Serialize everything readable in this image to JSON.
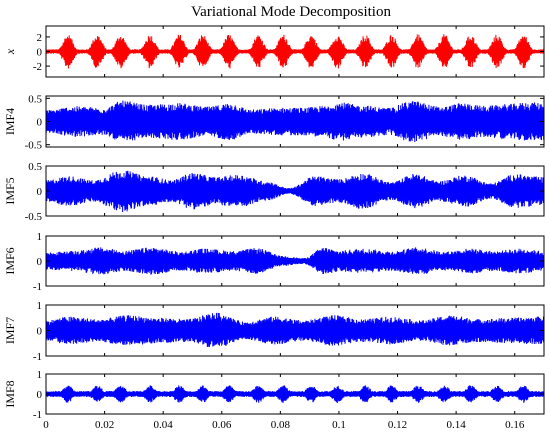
{
  "chart_data": {
    "title": "Variational Mode Decomposition",
    "type": "line",
    "xlim": [
      0,
      0.17
    ],
    "x_ticks": [
      "0",
      "0.02",
      "0.04",
      "0.06",
      "0.08",
      "0.1",
      "0.12",
      "0.14",
      "0.16"
    ],
    "x_tick_values": [
      0,
      0.02,
      0.04,
      0.06,
      0.08,
      0.1,
      0.12,
      0.14,
      0.16
    ],
    "panels": [
      {
        "ylabel": "x",
        "color": "#ff0000",
        "ylim": [
          -3.5,
          3.5
        ],
        "y_ticks": [
          "2",
          "0",
          "-2"
        ],
        "y_tick_values": [
          2,
          0,
          -2
        ],
        "envelope": {
          "kind": "bursts",
          "burst_centers": [
            0.0075,
            0.0175,
            0.0255,
            0.0355,
            0.0455,
            0.0535,
            0.0625,
            0.0725,
            0.081,
            0.0905,
            0.0995,
            0.109,
            0.118,
            0.127,
            0.136,
            0.145,
            0.154,
            0.163
          ],
          "burst_peak": 2.4,
          "baseline": 0.3
        }
      },
      {
        "ylabel": "IMF4",
        "color": "#0000ff",
        "ylim": [
          -0.55,
          0.55
        ],
        "y_ticks": [
          "0.5",
          "0",
          "-0.5"
        ],
        "y_tick_values": [
          0.5,
          0,
          -0.5
        ],
        "envelope": {
          "kind": "knots",
          "t": [
            0,
            0.01,
            0.02,
            0.026,
            0.035,
            0.045,
            0.055,
            0.063,
            0.07,
            0.08,
            0.088,
            0.095,
            0.1,
            0.108,
            0.117,
            0.125,
            0.135,
            0.142,
            0.15,
            0.158,
            0.165,
            0.17
          ],
          "amp": [
            0.25,
            0.33,
            0.3,
            0.45,
            0.36,
            0.4,
            0.32,
            0.4,
            0.26,
            0.3,
            0.3,
            0.34,
            0.42,
            0.35,
            0.3,
            0.45,
            0.32,
            0.4,
            0.34,
            0.38,
            0.42,
            0.4
          ]
        }
      },
      {
        "ylabel": "IMF5",
        "color": "#0000ff",
        "ylim": [
          -0.5,
          0.5
        ],
        "y_ticks": [
          "0.5",
          "0",
          "-0.5"
        ],
        "y_tick_values": [
          0.5,
          0,
          -0.5
        ],
        "envelope": {
          "kind": "knots",
          "t": [
            0,
            0.008,
            0.016,
            0.026,
            0.035,
            0.043,
            0.05,
            0.058,
            0.066,
            0.075,
            0.083,
            0.092,
            0.1,
            0.108,
            0.118,
            0.126,
            0.134,
            0.143,
            0.152,
            0.16,
            0.17
          ],
          "amp": [
            0.22,
            0.3,
            0.22,
            0.42,
            0.3,
            0.22,
            0.37,
            0.28,
            0.33,
            0.2,
            0.06,
            0.3,
            0.24,
            0.36,
            0.18,
            0.35,
            0.2,
            0.32,
            0.16,
            0.34,
            0.28
          ]
        }
      },
      {
        "ylabel": "IMF6",
        "color": "#0000ff",
        "ylim": [
          -1,
          1
        ],
        "y_ticks": [
          "1",
          "0",
          "-1"
        ],
        "y_tick_values": [
          1,
          0,
          -1
        ],
        "envelope": {
          "kind": "knots",
          "t": [
            0,
            0.01,
            0.018,
            0.027,
            0.036,
            0.046,
            0.054,
            0.064,
            0.072,
            0.081,
            0.088,
            0.095,
            0.1,
            0.108,
            0.118,
            0.127,
            0.136,
            0.145,
            0.153,
            0.162,
            0.17
          ],
          "amp": [
            0.35,
            0.4,
            0.55,
            0.42,
            0.55,
            0.38,
            0.5,
            0.4,
            0.52,
            0.2,
            0.12,
            0.55,
            0.42,
            0.5,
            0.4,
            0.55,
            0.38,
            0.5,
            0.4,
            0.5,
            0.4
          ]
        }
      },
      {
        "ylabel": "IMF7",
        "color": "#0000ff",
        "ylim": [
          -1,
          1
        ],
        "y_ticks": [
          "1",
          "0",
          "-1"
        ],
        "y_tick_values": [
          1,
          0,
          -1
        ],
        "envelope": {
          "kind": "knots",
          "t": [
            0,
            0.008,
            0.018,
            0.028,
            0.038,
            0.048,
            0.058,
            0.068,
            0.078,
            0.088,
            0.098,
            0.108,
            0.118,
            0.128,
            0.138,
            0.148,
            0.158,
            0.17
          ],
          "amp": [
            0.4,
            0.55,
            0.45,
            0.6,
            0.5,
            0.45,
            0.7,
            0.35,
            0.55,
            0.4,
            0.6,
            0.45,
            0.55,
            0.4,
            0.6,
            0.45,
            0.5,
            0.55
          ]
        }
      },
      {
        "ylabel": "IMF8",
        "color": "#0000ff",
        "ylim": [
          -1,
          1
        ],
        "y_ticks": [
          "1",
          "0",
          "-1"
        ],
        "y_tick_values": [
          1,
          0,
          -1
        ],
        "envelope": {
          "kind": "bursts",
          "burst_centers": [
            0.0075,
            0.0175,
            0.0255,
            0.0355,
            0.0455,
            0.0535,
            0.0625,
            0.0725,
            0.081,
            0.0905,
            0.0995,
            0.109,
            0.118,
            0.127,
            0.136,
            0.145,
            0.154,
            0.163
          ],
          "burst_peak": 0.45,
          "baseline": 0.15
        }
      }
    ]
  }
}
